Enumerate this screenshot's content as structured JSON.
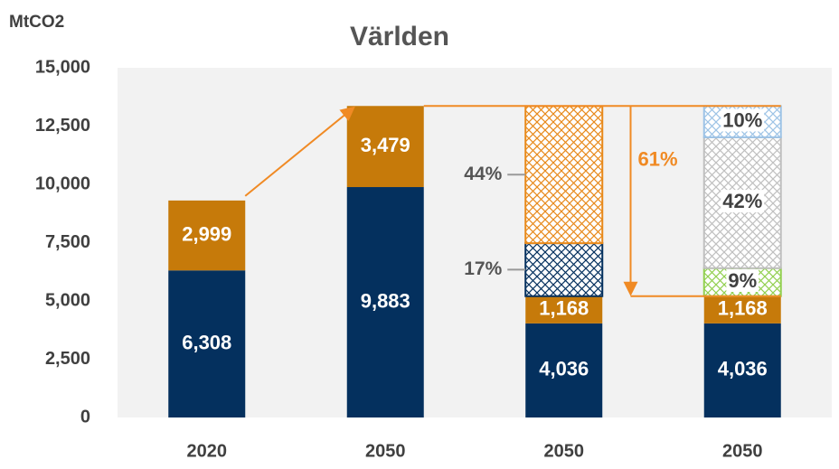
{
  "chart_data": {
    "type": "stacked_bar",
    "title": "Världen",
    "y_label": "MtCO2",
    "categories": [
      "2020",
      "2050",
      "2050",
      "2050"
    ],
    "ylim": [
      0,
      15000
    ],
    "yticks": [
      0,
      {
        "value": 2500,
        "label": "2,500"
      },
      {
        "value": 5000,
        "label": "5,000"
      },
      {
        "value": 7500,
        "label": "7,500"
      },
      {
        "value": 10000,
        "label": "10,000"
      },
      {
        "value": 12500,
        "label": "12,500"
      },
      {
        "value": 15000,
        "label": "15,000"
      }
    ],
    "series": [
      {
        "color": "#04305e",
        "hatched": false,
        "values": [
          6308,
          9883,
          4036,
          4036
        ],
        "value_labels": [
          "6,308",
          "9,883",
          "4,036",
          "4,036"
        ]
      },
      {
        "color": "#c67a0a",
        "hatched": false,
        "values": [
          2999,
          3479,
          1168,
          1168
        ],
        "value_labels": [
          "2,999",
          "3,479",
          "1,168",
          "1,168"
        ]
      },
      {
        "color": "#04305e",
        "hatched": true,
        "label_outside": true,
        "values": [
          null,
          null,
          2272,
          null
        ],
        "value_labels": [
          null,
          null,
          "17%",
          null
        ]
      },
      {
        "color": "#e8891a",
        "hatched": true,
        "label_outside": true,
        "values": [
          null,
          null,
          5879,
          null
        ],
        "value_labels": [
          null,
          null,
          "44%",
          null
        ]
      },
      {
        "color": "#92d050",
        "hatched": true,
        "values": [
          null,
          null,
          null,
          1203
        ],
        "value_labels": [
          null,
          null,
          null,
          "9%"
        ]
      },
      {
        "color": "#bfbfbf",
        "hatched": true,
        "values": [
          null,
          null,
          null,
          5612
        ],
        "value_labels": [
          null,
          null,
          null,
          "42%"
        ]
      },
      {
        "color": "#9dc3e6",
        "hatched": true,
        "values": [
          null,
          null,
          null,
          1336
        ],
        "value_labels": [
          null,
          null,
          null,
          "10%"
        ]
      }
    ],
    "annotations": [
      {
        "text": "61%",
        "color": "#f08a24"
      }
    ],
    "arrow_color": "#f08a24"
  }
}
